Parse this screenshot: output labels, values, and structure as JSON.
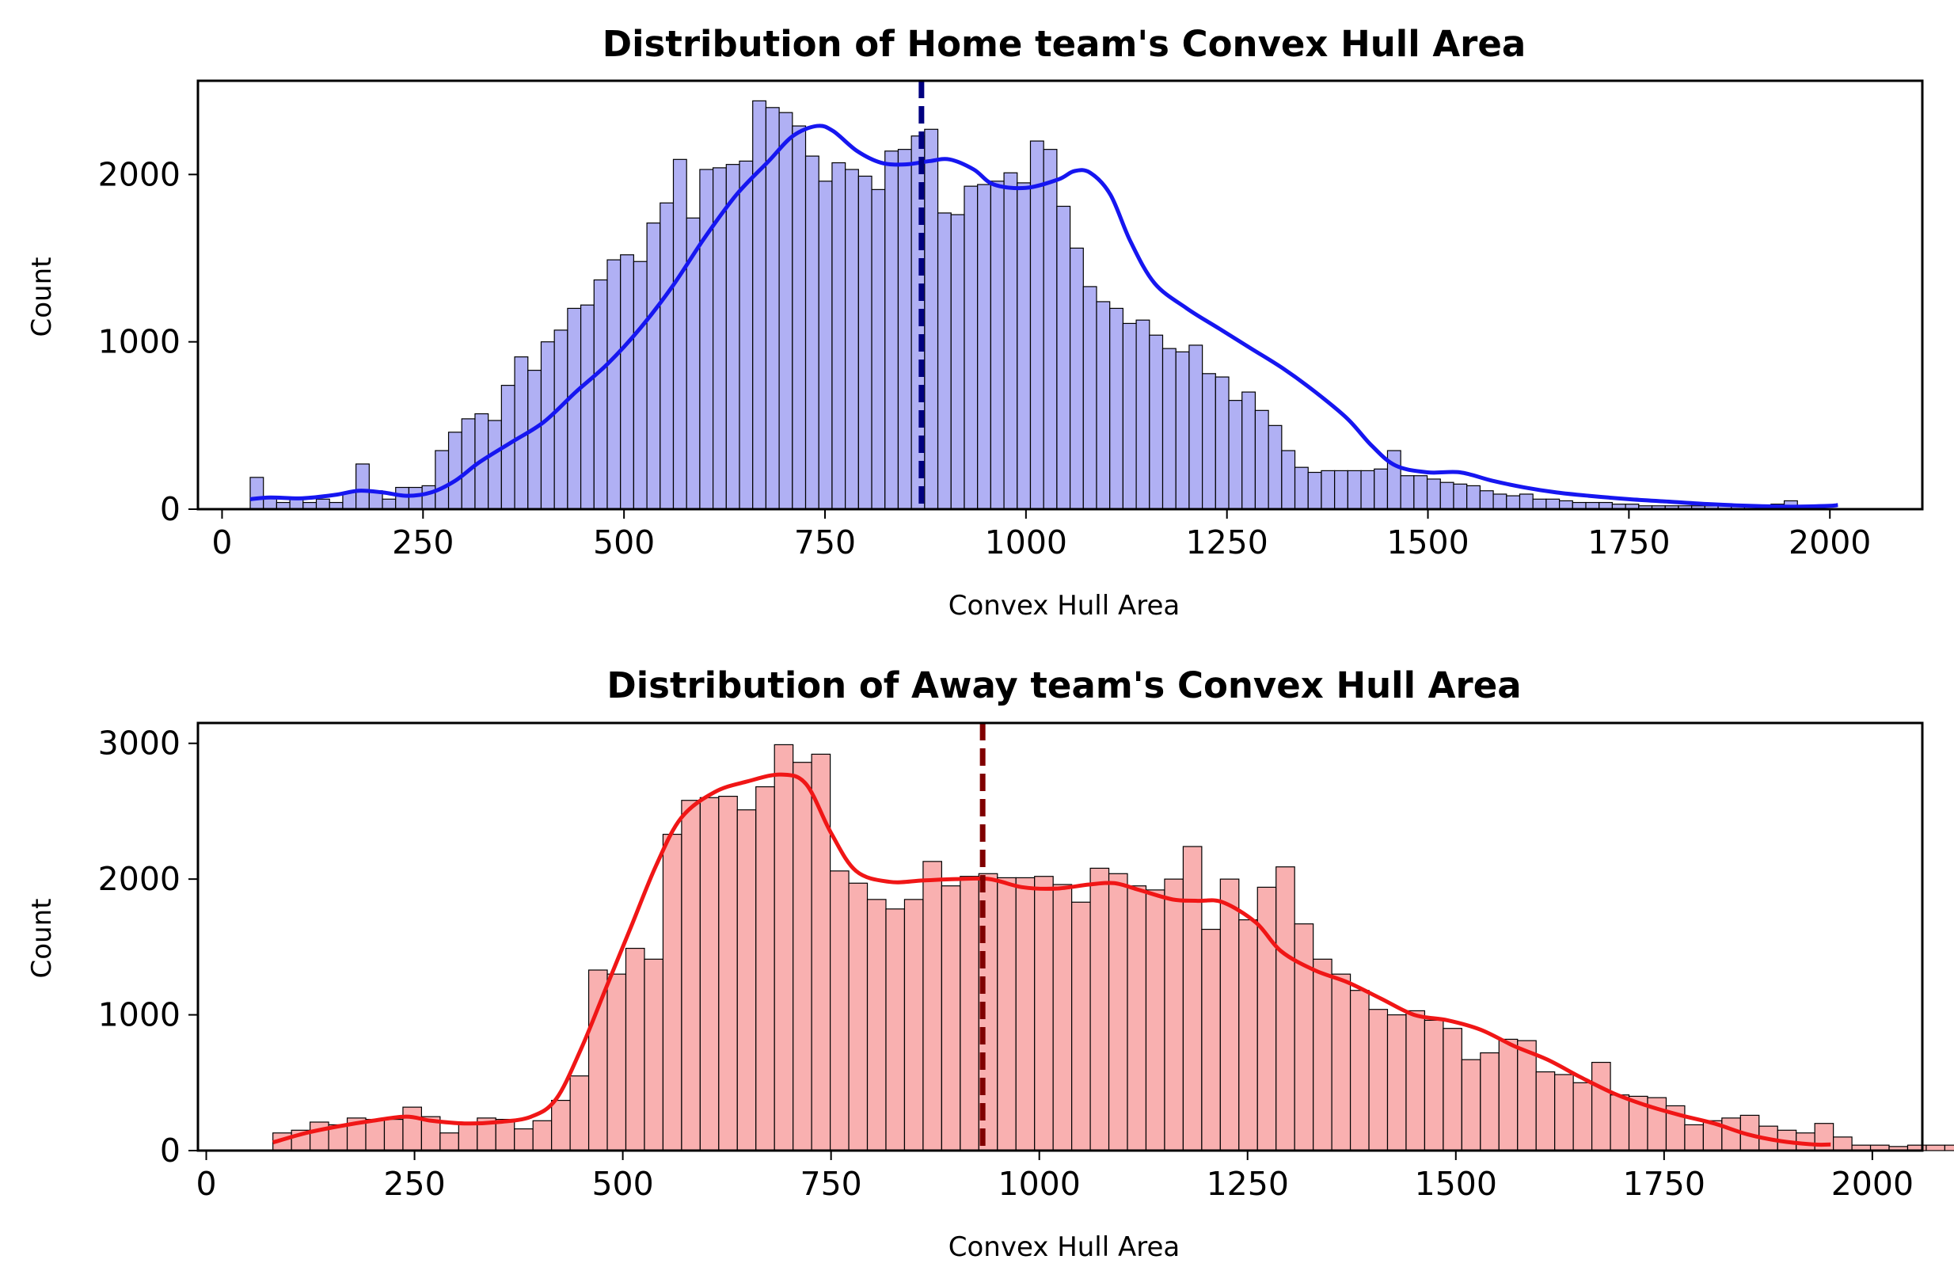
{
  "chart_data": [
    {
      "type": "bar",
      "title": "Distribution of Home team's Convex Hull Area",
      "xlabel": "Convex Hull Area",
      "ylabel": "Count",
      "xlim": [
        -30,
        2115
      ],
      "ylim": [
        0,
        2560
      ],
      "xticks": [
        0,
        250,
        500,
        750,
        1000,
        1250,
        1500,
        1750,
        2000
      ],
      "yticks": [
        0,
        1000,
        2000
      ],
      "bin_start": 35,
      "bin_width": 16.45,
      "values": [
        190,
        70,
        40,
        60,
        40,
        60,
        40,
        100,
        270,
        110,
        60,
        130,
        130,
        140,
        350,
        460,
        540,
        570,
        530,
        740,
        910,
        830,
        1000,
        1070,
        1200,
        1220,
        1370,
        1490,
        1520,
        1480,
        1710,
        1830,
        2090,
        1740,
        2030,
        2040,
        2060,
        2080,
        2440,
        2400,
        2370,
        2290,
        2110,
        1960,
        2070,
        2030,
        1990,
        1910,
        2140,
        2150,
        2230,
        2270,
        1770,
        1760,
        1930,
        1940,
        1960,
        2010,
        1950,
        2200,
        2150,
        1810,
        1560,
        1330,
        1240,
        1200,
        1110,
        1130,
        1040,
        960,
        940,
        980,
        810,
        790,
        650,
        700,
        590,
        500,
        350,
        250,
        220,
        230,
        230,
        230,
        230,
        240,
        350,
        200,
        200,
        180,
        160,
        150,
        140,
        110,
        90,
        80,
        90,
        60,
        60,
        50,
        40,
        40,
        40,
        30,
        30,
        20,
        20,
        20,
        20,
        20,
        20,
        20,
        20,
        20,
        20,
        30,
        50
      ],
      "kde": [
        [
          35,
          60
        ],
        [
          60,
          70
        ],
        [
          100,
          65
        ],
        [
          140,
          85
        ],
        [
          170,
          110
        ],
        [
          200,
          100
        ],
        [
          230,
          80
        ],
        [
          260,
          100
        ],
        [
          290,
          170
        ],
        [
          320,
          280
        ],
        [
          360,
          400
        ],
        [
          400,
          520
        ],
        [
          440,
          700
        ],
        [
          480,
          870
        ],
        [
          520,
          1080
        ],
        [
          560,
          1330
        ],
        [
          600,
          1620
        ],
        [
          640,
          1880
        ],
        [
          680,
          2080
        ],
        [
          710,
          2230
        ],
        [
          740,
          2290
        ],
        [
          760,
          2260
        ],
        [
          790,
          2140
        ],
        [
          820,
          2070
        ],
        [
          850,
          2060
        ],
        [
          880,
          2080
        ],
        [
          905,
          2090
        ],
        [
          935,
          2030
        ],
        [
          960,
          1940
        ],
        [
          1000,
          1920
        ],
        [
          1040,
          1970
        ],
        [
          1060,
          2020
        ],
        [
          1080,
          2010
        ],
        [
          1105,
          1880
        ],
        [
          1130,
          1600
        ],
        [
          1160,
          1350
        ],
        [
          1200,
          1200
        ],
        [
          1240,
          1080
        ],
        [
          1280,
          960
        ],
        [
          1320,
          840
        ],
        [
          1360,
          700
        ],
        [
          1400,
          540
        ],
        [
          1430,
          380
        ],
        [
          1460,
          260
        ],
        [
          1500,
          220
        ],
        [
          1540,
          220
        ],
        [
          1580,
          170
        ],
        [
          1620,
          130
        ],
        [
          1660,
          100
        ],
        [
          1700,
          80
        ],
        [
          1750,
          60
        ],
        [
          1800,
          45
        ],
        [
          1850,
          30
        ],
        [
          1900,
          20
        ],
        [
          1950,
          15
        ],
        [
          2000,
          20
        ],
        [
          2010,
          25
        ]
      ],
      "mean_line": 870,
      "colors": {
        "bar": "#b0b0f4",
        "kde": "#1616f0",
        "mean": "#000080"
      }
    },
    {
      "type": "bar",
      "title": "Distribution of Away team's Convex Hull Area",
      "xlabel": "Convex Hull Area",
      "ylabel": "Count",
      "xlim": [
        -10,
        2060
      ],
      "ylim": [
        0,
        3150
      ],
      "xticks": [
        0,
        250,
        500,
        750,
        1000,
        1250,
        1500,
        1750,
        2000
      ],
      "yticks": [
        0,
        1000,
        2000,
        3000
      ],
      "bin_start": 80,
      "bin_width": 22.3,
      "values": [
        130,
        150,
        210,
        190,
        240,
        230,
        230,
        320,
        250,
        130,
        200,
        240,
        230,
        160,
        220,
        370,
        550,
        1330,
        1300,
        1490,
        1410,
        2330,
        2580,
        2600,
        2610,
        2510,
        2680,
        2990,
        2860,
        2920,
        2060,
        1970,
        1850,
        1780,
        1850,
        2130,
        1950,
        2020,
        2040,
        2010,
        2010,
        2020,
        1960,
        1830,
        2080,
        2040,
        1950,
        1920,
        2000,
        2240,
        1630,
        2000,
        1700,
        1940,
        2090,
        1670,
        1410,
        1300,
        1180,
        1040,
        1000,
        1030,
        960,
        900,
        670,
        720,
        820,
        810,
        580,
        560,
        500,
        650,
        410,
        400,
        390,
        330,
        190,
        220,
        240,
        260,
        180,
        150,
        130,
        200,
        100,
        40,
        40,
        30,
        40,
        40,
        40,
        40,
        60
      ],
      "kde": [
        [
          80,
          60
        ],
        [
          120,
          130
        ],
        [
          160,
          180
        ],
        [
          200,
          220
        ],
        [
          240,
          250
        ],
        [
          270,
          220
        ],
        [
          310,
          200
        ],
        [
          350,
          210
        ],
        [
          390,
          250
        ],
        [
          420,
          380
        ],
        [
          450,
          750
        ],
        [
          480,
          1200
        ],
        [
          510,
          1650
        ],
        [
          540,
          2100
        ],
        [
          570,
          2450
        ],
        [
          610,
          2640
        ],
        [
          650,
          2720
        ],
        [
          690,
          2770
        ],
        [
          720,
          2700
        ],
        [
          750,
          2340
        ],
        [
          780,
          2060
        ],
        [
          820,
          1980
        ],
        [
          860,
          1990
        ],
        [
          900,
          2000
        ],
        [
          940,
          2000
        ],
        [
          980,
          1940
        ],
        [
          1020,
          1930
        ],
        [
          1060,
          1960
        ],
        [
          1090,
          1970
        ],
        [
          1120,
          1920
        ],
        [
          1160,
          1850
        ],
        [
          1190,
          1840
        ],
        [
          1220,
          1830
        ],
        [
          1260,
          1680
        ],
        [
          1290,
          1470
        ],
        [
          1330,
          1330
        ],
        [
          1370,
          1240
        ],
        [
          1410,
          1120
        ],
        [
          1450,
          1000
        ],
        [
          1490,
          960
        ],
        [
          1530,
          890
        ],
        [
          1570,
          770
        ],
        [
          1610,
          670
        ],
        [
          1650,
          540
        ],
        [
          1690,
          420
        ],
        [
          1730,
          330
        ],
        [
          1770,
          260
        ],
        [
          1810,
          200
        ],
        [
          1850,
          120
        ],
        [
          1890,
          70
        ],
        [
          1930,
          45
        ],
        [
          1950,
          45
        ]
      ],
      "mean_line": 932,
      "colors": {
        "bar": "#f9b0b0",
        "kde": "#f01616",
        "mean": "#800000"
      }
    }
  ]
}
